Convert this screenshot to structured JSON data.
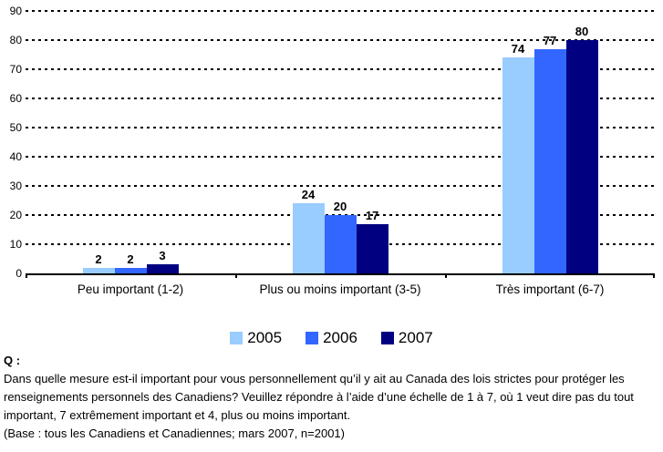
{
  "chart_data": {
    "type": "bar",
    "title": "",
    "categories": [
      "Peu important (1-2)",
      "Plus ou moins important (3-5)",
      "Très important (6-7)"
    ],
    "series": [
      {
        "name": "2005",
        "color": "#99CCFF",
        "values": [
          2,
          24,
          74
        ]
      },
      {
        "name": "2006",
        "color": "#3366FF",
        "values": [
          2,
          20,
          77
        ]
      },
      {
        "name": "2007",
        "color": "#000080",
        "values": [
          3,
          17,
          80
        ]
      }
    ],
    "ylim": [
      0,
      90
    ],
    "ytick_step": 10,
    "grid": "horizontal-dotted",
    "legend_position": "bottom-center",
    "data_labels": "above-bars-bold"
  },
  "footer": {
    "q_label": "Q :",
    "question_text": "Dans quelle mesure est-il important pour vous personnellement qu’il y ait au Canada des lois strictes pour protéger les renseignements personnels des Canadiens? Veuillez répondre à l’aide d’une échelle de 1 à 7, où 1 veut dire pas du tout important, 7 extrêmement important et 4, plus ou moins important.",
    "base_text": "(Base : tous les Canadiens et Canadiennes; mars 2007, n=2001)"
  }
}
